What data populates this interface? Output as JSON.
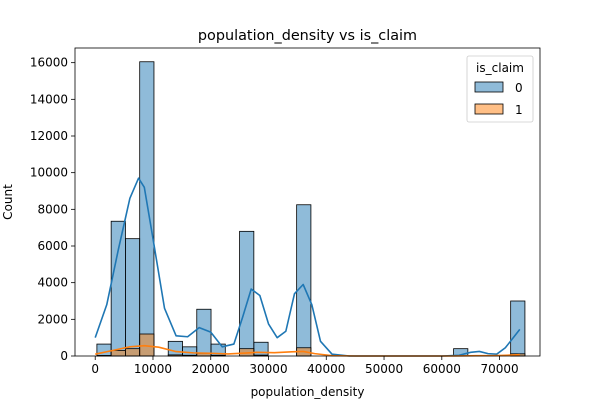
{
  "chart_data": {
    "type": "histogram",
    "title": "population_density vs is_claim",
    "xlabel": "population_density",
    "ylabel": "Count",
    "xlim": [
      -3500,
      77000
    ],
    "ylim": [
      0,
      16800
    ],
    "xticks": [
      0,
      10000,
      20000,
      30000,
      40000,
      50000,
      60000,
      70000
    ],
    "yticks": [
      0,
      2000,
      4000,
      6000,
      8000,
      10000,
      12000,
      14000,
      16000
    ],
    "bin_edges": [
      290,
      2760,
      5230,
      7700,
      10170,
      12640,
      15110,
      17580,
      20050,
      22520,
      24990,
      27460,
      29930,
      32400,
      34870,
      37340,
      39810,
      42280,
      44750,
      47220,
      49690,
      52160,
      54630,
      57100,
      59570,
      62040,
      64510,
      66980,
      69450,
      71920,
      74390
    ],
    "legend": {
      "title": "is_claim",
      "position": "upper right"
    },
    "series": [
      {
        "name": "0",
        "color": "#1f77b4",
        "counts": [
          650,
          7350,
          6400,
          16050,
          0,
          800,
          500,
          2550,
          650,
          0,
          6800,
          750,
          0,
          0,
          8250,
          0,
          0,
          0,
          0,
          0,
          0,
          0,
          0,
          0,
          0,
          400,
          0,
          0,
          0,
          3000
        ],
        "kde_x": [
          0,
          2000,
          4000,
          6000,
          7500,
          8500,
          10000,
          12000,
          14000,
          16000,
          18000,
          20000,
          22000,
          24000,
          25500,
          27000,
          28500,
          30000,
          31500,
          33000,
          34500,
          36000,
          37500,
          39000,
          41000,
          44000,
          48000,
          52000,
          56000,
          60000,
          63000,
          65000,
          66500,
          68000,
          69500,
          71000,
          72500,
          73500
        ],
        "kde_y": [
          1000,
          2800,
          5800,
          8600,
          9700,
          9200,
          6400,
          2600,
          1100,
          1050,
          1550,
          1300,
          500,
          650,
          2100,
          3650,
          3300,
          1750,
          1000,
          1350,
          3400,
          3900,
          2800,
          800,
          100,
          0,
          0,
          0,
          0,
          0,
          40,
          200,
          250,
          130,
          100,
          450,
          1050,
          1450
        ]
      },
      {
        "name": "1",
        "color": "#ff7f0e",
        "counts": [
          30,
          300,
          400,
          1200,
          0,
          60,
          40,
          150,
          40,
          0,
          400,
          50,
          0,
          0,
          450,
          0,
          0,
          0,
          0,
          0,
          0,
          0,
          0,
          0,
          0,
          20,
          0,
          0,
          0,
          120
        ],
        "kde_x": [
          0,
          3000,
          6000,
          8500,
          11000,
          14000,
          17000,
          20000,
          23000,
          26000,
          28000,
          31000,
          34000,
          36000,
          38000,
          41000,
          45000,
          55000,
          62000,
          66000,
          69000,
          71000,
          73500
        ],
        "kde_y": [
          100,
          300,
          500,
          560,
          480,
          240,
          170,
          150,
          110,
          160,
          200,
          180,
          230,
          250,
          130,
          20,
          0,
          0,
          0,
          15,
          20,
          40,
          70
        ]
      }
    ]
  }
}
